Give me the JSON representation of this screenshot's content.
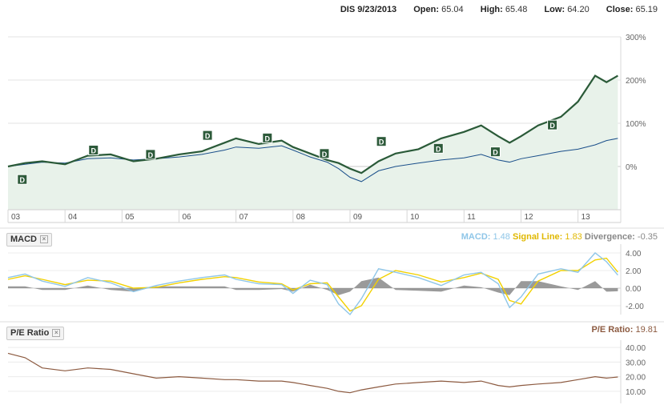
{
  "header": {
    "symbol_date": "DIS 9/23/2013",
    "open_label": "Open:",
    "open_value": "65.04",
    "high_label": "High:",
    "high_value": "65.48",
    "low_label": "Low:",
    "low_value": "64.20",
    "close_label": "Close:",
    "close_value": "65.19"
  },
  "colors": {
    "main_series": "#2a5a38",
    "benchmark": "#1a4f8a",
    "area_fill": "#e8f2ea",
    "macd": "#8fc6e8",
    "signal": "#f2d100",
    "divergence": "#888888",
    "pe": "#8c5a40"
  },
  "macd_panel": {
    "button_label": "MACD",
    "macd_label": "MACD:",
    "macd_value": "1.48",
    "signal_label": "Signal Line:",
    "signal_value": "1.83",
    "div_label": "Divergence:",
    "div_value": "-0.35"
  },
  "pe_panel": {
    "button_label": "P/E Ratio",
    "pe_label": "P/E Ratio:",
    "pe_value": "19.81"
  },
  "chart_data": [
    {
      "type": "line",
      "x_labels": [
        "03",
        "04",
        "05",
        "06",
        "07",
        "08",
        "09",
        "10",
        "11",
        "12",
        "13"
      ],
      "y_ticks": [
        "300%",
        "200%",
        "100%",
        "0%"
      ],
      "ylim": [
        -100,
        300
      ],
      "grid": true,
      "dividend_marker": "D",
      "series": [
        {
          "key": "main",
          "x": [
            2003.0,
            2003.3,
            2003.6,
            2004.0,
            2004.4,
            2004.8,
            2005.2,
            2005.6,
            2006.0,
            2006.4,
            2006.8,
            2007.0,
            2007.4,
            2007.8,
            2008.0,
            2008.3,
            2008.6,
            2008.8,
            2009.0,
            2009.2,
            2009.5,
            2009.8,
            2010.2,
            2010.6,
            2011.0,
            2011.3,
            2011.6,
            2011.8,
            2012.0,
            2012.3,
            2012.7,
            2013.0,
            2013.3,
            2013.5,
            2013.7
          ],
          "y": [
            0,
            8,
            12,
            5,
            25,
            28,
            12,
            18,
            28,
            35,
            55,
            65,
            52,
            60,
            45,
            30,
            15,
            8,
            -5,
            -15,
            12,
            30,
            40,
            65,
            80,
            95,
            70,
            55,
            70,
            95,
            115,
            150,
            210,
            195,
            210
          ]
        },
        {
          "key": "benchmark",
          "x": [
            2003.0,
            2003.3,
            2003.6,
            2004.0,
            2004.4,
            2004.8,
            2005.2,
            2005.6,
            2006.0,
            2006.4,
            2006.8,
            2007.0,
            2007.4,
            2007.8,
            2008.0,
            2008.3,
            2008.6,
            2008.8,
            2009.0,
            2009.2,
            2009.5,
            2009.8,
            2010.2,
            2010.6,
            2011.0,
            2011.3,
            2011.6,
            2011.8,
            2012.0,
            2012.3,
            2012.7,
            2013.0,
            2013.3,
            2013.5,
            2013.7
          ],
          "y": [
            0,
            5,
            10,
            8,
            18,
            20,
            15,
            18,
            22,
            28,
            38,
            45,
            42,
            48,
            38,
            22,
            10,
            -5,
            -25,
            -35,
            -10,
            0,
            8,
            15,
            20,
            28,
            15,
            10,
            18,
            25,
            35,
            40,
            50,
            60,
            65
          ]
        }
      ],
      "dividend_points": [
        {
          "x": 2003.25,
          "y": -30
        },
        {
          "x": 2004.5,
          "y": 38
        },
        {
          "x": 2005.5,
          "y": 28
        },
        {
          "x": 2006.5,
          "y": 72
        },
        {
          "x": 2007.55,
          "y": 66
        },
        {
          "x": 2008.55,
          "y": 30
        },
        {
          "x": 2009.55,
          "y": 58
        },
        {
          "x": 2010.55,
          "y": 42
        },
        {
          "x": 2011.55,
          "y": 34
        },
        {
          "x": 2012.55,
          "y": 96
        }
      ]
    },
    {
      "type": "line",
      "y_ticks": [
        "4.00",
        "2.00",
        "0.00",
        "-2.00"
      ],
      "ylim": [
        -3,
        5
      ],
      "series": [
        {
          "key": "macd",
          "x": [
            2003.0,
            2003.3,
            2003.6,
            2004.0,
            2004.4,
            2004.8,
            2005.2,
            2005.6,
            2006.0,
            2006.4,
            2006.8,
            2007.0,
            2007.4,
            2007.8,
            2008.0,
            2008.3,
            2008.6,
            2008.8,
            2009.0,
            2009.2,
            2009.5,
            2009.8,
            2010.2,
            2010.6,
            2011.0,
            2011.3,
            2011.6,
            2011.8,
            2012.0,
            2012.3,
            2012.7,
            2013.0,
            2013.3,
            2013.5,
            2013.7
          ],
          "y": [
            1.2,
            1.6,
            0.8,
            0.2,
            1.2,
            0.6,
            -0.4,
            0.3,
            0.8,
            1.2,
            1.5,
            1.0,
            0.5,
            0.4,
            -0.6,
            0.9,
            0.4,
            -1.8,
            -3.0,
            -1.2,
            2.2,
            1.8,
            1.2,
            0.3,
            1.5,
            1.8,
            0.5,
            -2.2,
            -1.0,
            1.6,
            2.2,
            1.8,
            4.0,
            3.0,
            1.48
          ]
        },
        {
          "key": "signal",
          "x": [
            2003.0,
            2003.3,
            2003.6,
            2004.0,
            2004.4,
            2004.8,
            2005.2,
            2005.6,
            2006.0,
            2006.4,
            2006.8,
            2007.0,
            2007.4,
            2007.8,
            2008.0,
            2008.3,
            2008.6,
            2008.8,
            2009.0,
            2009.2,
            2009.5,
            2009.8,
            2010.2,
            2010.6,
            2011.0,
            2011.3,
            2011.6,
            2011.8,
            2012.0,
            2012.3,
            2012.7,
            2013.0,
            2013.3,
            2013.5,
            2013.7
          ],
          "y": [
            1.0,
            1.4,
            1.0,
            0.4,
            0.9,
            0.8,
            0.0,
            0.1,
            0.6,
            1.0,
            1.3,
            1.2,
            0.7,
            0.5,
            -0.2,
            0.5,
            0.6,
            -1.0,
            -2.6,
            -2.0,
            1.0,
            2.0,
            1.5,
            0.7,
            1.2,
            1.7,
            1.0,
            -1.4,
            -1.8,
            0.8,
            2.0,
            2.0,
            3.2,
            3.4,
            1.83
          ]
        },
        {
          "key": "divergence",
          "x": [
            2003.0,
            2003.3,
            2003.6,
            2004.0,
            2004.4,
            2004.8,
            2005.2,
            2005.6,
            2006.0,
            2006.4,
            2006.8,
            2007.0,
            2007.4,
            2007.8,
            2008.0,
            2008.3,
            2008.6,
            2008.8,
            2009.0,
            2009.2,
            2009.5,
            2009.8,
            2010.2,
            2010.6,
            2011.0,
            2011.3,
            2011.6,
            2011.8,
            2012.0,
            2012.3,
            2012.7,
            2013.0,
            2013.3,
            2013.5,
            2013.7
          ],
          "y": [
            0.2,
            0.2,
            -0.2,
            -0.2,
            0.3,
            -0.2,
            -0.4,
            0.2,
            0.2,
            0.2,
            0.2,
            -0.2,
            -0.2,
            -0.1,
            -0.4,
            0.4,
            -0.2,
            -0.8,
            -0.4,
            0.8,
            1.2,
            -0.2,
            -0.3,
            -0.4,
            0.3,
            0.1,
            -0.5,
            -0.8,
            0.8,
            0.8,
            0.2,
            -0.2,
            0.8,
            -0.4,
            -0.35
          ]
        }
      ]
    },
    {
      "type": "line",
      "y_ticks": [
        "40.00",
        "30.00",
        "20.00",
        "10.00"
      ],
      "ylim": [
        5,
        45
      ],
      "series": [
        {
          "key": "pe",
          "x": [
            2003.0,
            2003.3,
            2003.6,
            2004.0,
            2004.4,
            2004.8,
            2005.2,
            2005.6,
            2006.0,
            2006.4,
            2006.8,
            2007.0,
            2007.4,
            2007.8,
            2008.0,
            2008.3,
            2008.6,
            2008.8,
            2009.0,
            2009.2,
            2009.5,
            2009.8,
            2010.2,
            2010.6,
            2011.0,
            2011.3,
            2011.6,
            2011.8,
            2012.0,
            2012.3,
            2012.7,
            2013.0,
            2013.3,
            2013.5,
            2013.7
          ],
          "y": [
            36,
            33,
            26,
            24,
            26,
            25,
            22,
            19,
            20,
            19,
            18,
            18,
            17,
            17,
            16,
            14,
            12,
            10,
            9,
            11,
            13,
            15,
            16,
            17,
            16,
            17,
            14,
            13,
            14,
            15,
            16,
            18,
            20,
            19,
            19.81
          ]
        }
      ]
    }
  ]
}
